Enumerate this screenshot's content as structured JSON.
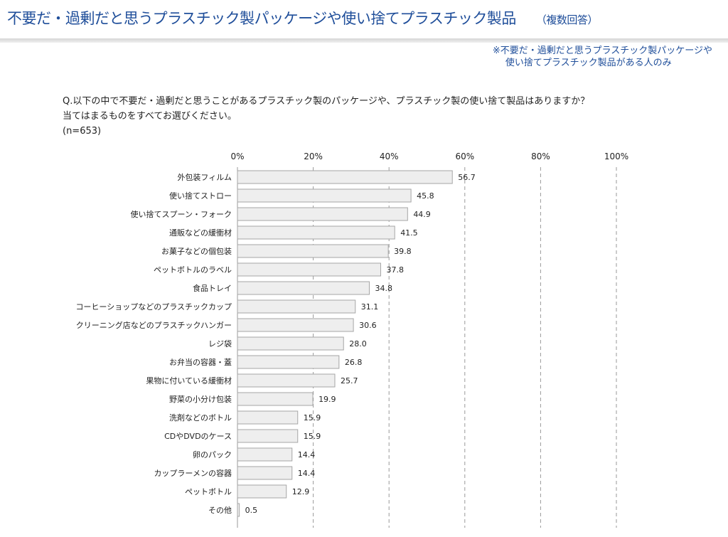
{
  "header": {
    "title": "不要だ・過剰だと思うプラスチック製パッケージや使い捨てプラスチック製品",
    "note": "（複数回答）"
  },
  "condition_note": {
    "line1": "※不要だ・過剰だと思うプラスチック製パッケージや",
    "line2": "使い捨てプラスチック製品がある人のみ"
  },
  "question": {
    "line1": "Q.以下の中で不要だ・過剰だと思うことがあるプラスチック製のパッケージや、プラスチック製の使い捨て製品はありますか？",
    "line2": "当てはまるものをすべてお選びください。",
    "sample": "(n=653)"
  },
  "colors": {
    "title": "#1f4e9a",
    "bar_fill": "#eeeeee",
    "bar_stroke": "#a6a6a6",
    "grid": "#9a9a9a"
  },
  "chart_data": {
    "type": "bar",
    "orientation": "horizontal",
    "xlim": [
      0,
      100
    ],
    "ticks": [
      "0%",
      "20%",
      "40%",
      "60%",
      "80%",
      "100%"
    ],
    "tick_values": [
      0,
      20,
      40,
      60,
      80,
      100
    ],
    "grid": "dashed vertical",
    "categories": [
      "外包装フィルム",
      "使い捨てストロー",
      "使い捨てスプーン・フォーク",
      "通販などの緩衝材",
      "お菓子などの個包装",
      "ペットボトルのラベル",
      "食品トレイ",
      "コーヒーショップなどのプラスチックカップ",
      "クリーニング店などのプラスチックハンガー",
      "レジ袋",
      "お弁当の容器・蓋",
      "果物に付いている緩衝材",
      "野菜の小分け包装",
      "洗剤などのボトル",
      "CDやDVDのケース",
      "卵のパック",
      "カップラーメンの容器",
      "ペットボトル",
      "その他"
    ],
    "values": [
      56.7,
      45.8,
      44.9,
      41.5,
      39.8,
      37.8,
      34.8,
      31.1,
      30.6,
      28.0,
      26.8,
      25.7,
      19.9,
      15.9,
      15.9,
      14.4,
      14.4,
      12.9,
      0.5
    ],
    "value_labels": [
      "56.7",
      "45.8",
      "44.9",
      "41.5",
      "39.8",
      "37.8",
      "34.8",
      "31.1",
      "30.6",
      "28.0",
      "26.8",
      "25.7",
      "19.9",
      "15.9",
      "15.9",
      "14.4",
      "14.4",
      "12.9",
      "0.5"
    ]
  }
}
